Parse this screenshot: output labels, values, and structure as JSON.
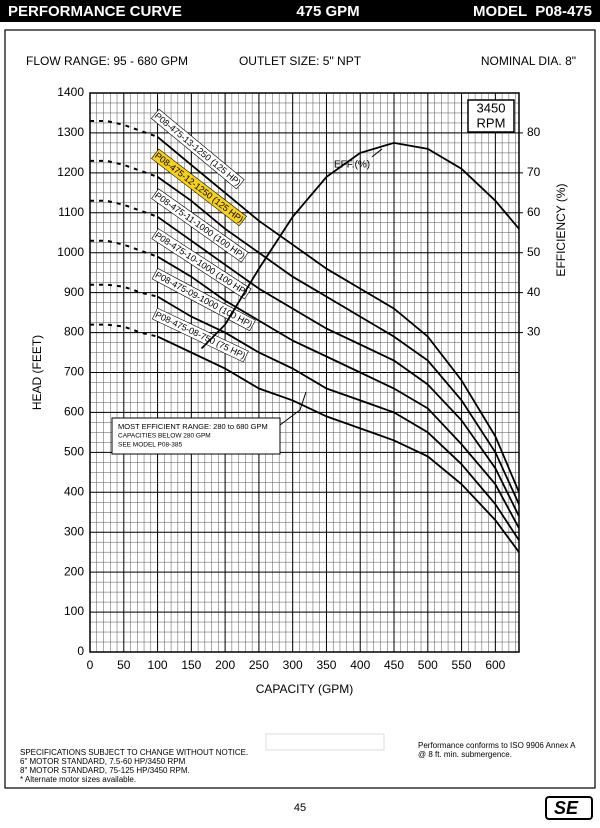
{
  "header": {
    "title": "PERFORMANCE CURVE",
    "flow": "475 GPM",
    "model": "MODEL  P08-475"
  },
  "specs": {
    "flow_range": "FLOW RANGE: 95 - 680 GPM",
    "outlet": "OUTLET SIZE: 5\" NPT",
    "diameter": "NOMINAL DIA. 8\""
  },
  "chart_data": {
    "type": "line",
    "xlabel": "CAPACITY (GPM)",
    "ylabel": "HEAD (FEET)",
    "y2label": "EFFICIENCY (%)",
    "xlim": [
      0,
      635
    ],
    "ylim": [
      0,
      1400
    ],
    "y2lim": [
      -50,
      90
    ],
    "xticks": [
      0,
      50,
      100,
      150,
      200,
      250,
      300,
      350,
      400,
      450,
      500,
      550,
      600
    ],
    "yticks": [
      0,
      100,
      200,
      300,
      400,
      500,
      600,
      700,
      800,
      900,
      1000,
      1100,
      1200,
      1300,
      1400
    ],
    "y2ticks": [
      30,
      40,
      50,
      60,
      70,
      80
    ],
    "grid": true,
    "speed": [
      "3450",
      "RPM"
    ],
    "annotation": [
      "MOST EFFICIENT RANGE: 280 to 680 GPM",
      "CAPACITIES BELOW 280 GPM",
      "SEE  MODEL  P08-385"
    ],
    "series": [
      {
        "name": "P08-475-13-1250 (125 HP)",
        "color": "#000000",
        "x": [
          100,
          150,
          200,
          250,
          300,
          350,
          400,
          450,
          500,
          550,
          600,
          635
        ],
        "values": [
          1290,
          1220,
          1150,
          1080,
          1020,
          960,
          910,
          860,
          790,
          680,
          540,
          400
        ]
      },
      {
        "name": "P08-475-12-1250 (125 HP)",
        "color": "#000000",
        "highlight": "#f7d117",
        "x": [
          100,
          150,
          200,
          250,
          300,
          350,
          400,
          450,
          500,
          550,
          600,
          635
        ],
        "values": [
          1190,
          1130,
          1060,
          1000,
          940,
          890,
          840,
          790,
          730,
          630,
          500,
          370
        ]
      },
      {
        "name": "P08-475-11-1000 (100 HP)",
        "color": "#000000",
        "x": [
          100,
          150,
          200,
          250,
          300,
          350,
          400,
          450,
          500,
          550,
          600,
          635
        ],
        "values": [
          1090,
          1030,
          970,
          910,
          860,
          810,
          770,
          730,
          670,
          580,
          460,
          340
        ]
      },
      {
        "name": "P08-475-10-1000 (100 HP)",
        "color": "#000000",
        "x": [
          100,
          150,
          200,
          250,
          300,
          350,
          400,
          450,
          500,
          550,
          600,
          635
        ],
        "values": [
          990,
          940,
          880,
          830,
          780,
          740,
          700,
          660,
          610,
          520,
          420,
          310
        ]
      },
      {
        "name": "P08-475-09-1000 (100 HP)",
        "color": "#000000",
        "x": [
          100,
          150,
          200,
          250,
          300,
          350,
          400,
          450,
          500,
          550,
          600,
          635
        ],
        "values": [
          890,
          840,
          800,
          750,
          710,
          660,
          630,
          600,
          550,
          470,
          370,
          280
        ]
      },
      {
        "name": "P08-475-08-750 (75 HP)",
        "color": "#000000",
        "x": [
          100,
          150,
          200,
          250,
          300,
          350,
          400,
          450,
          500,
          550,
          600,
          635
        ],
        "values": [
          790,
          750,
          710,
          660,
          630,
          590,
          560,
          530,
          490,
          420,
          330,
          250
        ]
      },
      {
        "name": "EFF.(%)",
        "color": "#000000",
        "axis": "y2",
        "x": [
          165,
          200,
          250,
          300,
          350,
          400,
          450,
          500,
          550,
          600,
          635
        ],
        "values": [
          26,
          32,
          46,
          59,
          69,
          75,
          77.5,
          76,
          71,
          63,
          56
        ]
      }
    ],
    "shutoff": {
      "style": "dashed",
      "x": [
        0,
        25,
        50,
        75,
        100
      ],
      "series": [
        {
          "values": [
            1330,
            1330,
            1320,
            1305,
            1290
          ]
        },
        {
          "values": [
            1230,
            1230,
            1220,
            1205,
            1190
          ]
        },
        {
          "values": [
            1130,
            1130,
            1120,
            1105,
            1090
          ]
        },
        {
          "values": [
            1030,
            1030,
            1020,
            1005,
            990
          ]
        },
        {
          "values": [
            920,
            920,
            915,
            900,
            890
          ]
        },
        {
          "values": [
            820,
            820,
            815,
            800,
            790
          ]
        }
      ]
    }
  },
  "footer": {
    "notes": [
      "SPECIFICATIONS SUBJECT TO CHANGE WITHOUT NOTICE.",
      "6\" MOTOR STANDARD, 7.5-60 HP/3450 RPM",
      "8\" MOTOR STANDARD, 75-125 HP/3450 RPM.",
      "* Alternate motor sizes available."
    ],
    "conformance": [
      "Performance conforms to ISO 9906 Annex A",
      "@ 8 ft. min. submergence."
    ],
    "page": "45",
    "logo": "SE"
  }
}
